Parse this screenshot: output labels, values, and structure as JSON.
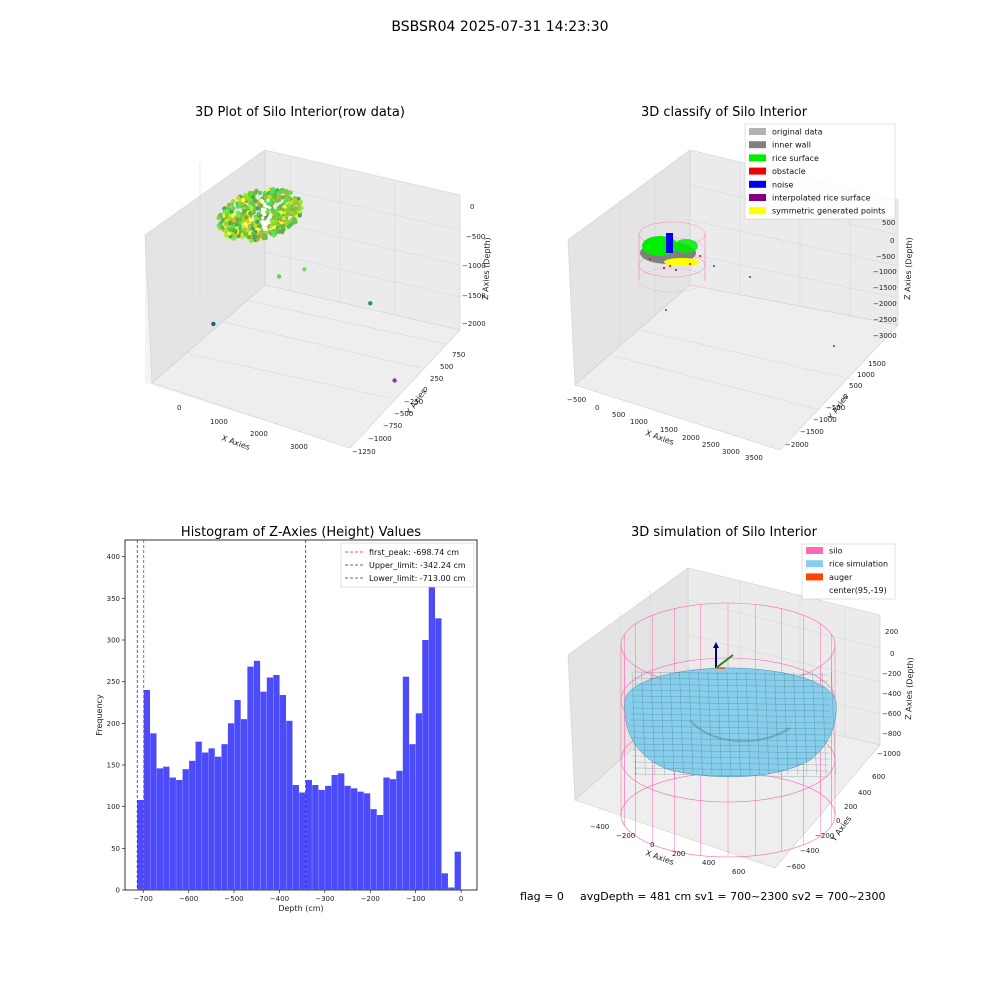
{
  "suptitle": "BSBSR04 2025-07-31 14:23:30",
  "status_line": {
    "flag": "flag = 0",
    "avg": "avgDepth = 481 cm  sv1 = 700~2300  sv2 = 700~2300"
  },
  "colors": {
    "hist_bar": "#4b4bfa",
    "first_peak": "#e8231f",
    "limits": "#2626d9",
    "silo": "#ff69b4",
    "rice": "#87ceeb",
    "auger": "#ff4500",
    "pane": "#f0f0f0"
  },
  "chart_data": [
    {
      "type": "scatter",
      "subtype": "3d",
      "title": "3D Plot of Silo Interior(row data)",
      "xlabel": "X Axies",
      "ylabel": "Y Axies",
      "zlabel": "Z Axies (Depth)",
      "x_ticks": [
        "0",
        "1000",
        "2000",
        "3000"
      ],
      "y_ticks": [
        "750",
        "500",
        "250",
        "0",
        "−250",
        "−500",
        "−750",
        "−1000",
        "−1250"
      ],
      "z_ticks": [
        "0",
        "−500",
        "−1000",
        "−1500",
        "−2000"
      ],
      "xlim": [
        -500,
        3500
      ],
      "ylim": [
        -1300,
        800
      ],
      "zlim": [
        -2300,
        0
      ],
      "points": [
        {
          "x": 800,
          "y": 300,
          "z": -100,
          "color": "#90ee40"
        },
        {
          "x": 1100,
          "y": -400,
          "z": -750,
          "color": "#5fd06a"
        },
        {
          "x": 1500,
          "y": -300,
          "z": -600,
          "color": "#7ad86a"
        },
        {
          "x": 2400,
          "y": 100,
          "z": -1300,
          "color": "#2e8b8b"
        },
        {
          "x": 3200,
          "y": -200,
          "z": -2200,
          "color": "#8b3aa0"
        },
        {
          "x": 100,
          "y": -700,
          "z": -1600,
          "color": "#1f5f7a"
        }
      ]
    },
    {
      "type": "scatter",
      "subtype": "3d",
      "title": "3D classify of Silo Interior",
      "xlabel": "X Axies",
      "ylabel": "Y Axies",
      "zlabel": "Z Axies (Depth)",
      "x_ticks": [
        "−500",
        "0",
        "500",
        "1000",
        "1500",
        "2000",
        "2500",
        "3000",
        "3500"
      ],
      "y_ticks": [
        "1500",
        "1000",
        "500",
        "0",
        "−500",
        "−1000",
        "−1500",
        "−2000"
      ],
      "z_ticks": [
        "500",
        "0",
        "−500",
        "−1000",
        "−1500",
        "−2000",
        "−2500",
        "−3000"
      ],
      "legend": [
        {
          "label": "original data",
          "color": "#b3b3b3"
        },
        {
          "label": "inner wall",
          "color": "#808080"
        },
        {
          "label": "rice surface",
          "color": "#00ee00"
        },
        {
          "label": "obstacle",
          "color": "#ee0000"
        },
        {
          "label": "noise",
          "color": "#0000ee"
        },
        {
          "label": "interpolated rice surface",
          "color": "#800080"
        },
        {
          "label": "symmetric generated points",
          "color": "#ffff00"
        }
      ]
    },
    {
      "type": "bar",
      "subtype": "histogram",
      "title": "Histogram of Z-Axies (Height) Values",
      "xlabel": "Depth (cm)",
      "ylabel": "Frequency",
      "xlim": [
        -740,
        35
      ],
      "ylim": [
        0,
        420
      ],
      "x_ticks": [
        -700,
        -600,
        -500,
        -400,
        -300,
        -200,
        -100,
        0
      ],
      "x_tick_labels": [
        "−700",
        "−600",
        "−500",
        "−400",
        "−300",
        "−200",
        "−100",
        "0"
      ],
      "y_ticks": [
        0,
        50,
        100,
        150,
        200,
        250,
        300,
        350,
        400
      ],
      "bin_start": -713,
      "bin_width": 14.26,
      "values": [
        108,
        240,
        188,
        146,
        148,
        135,
        132,
        145,
        155,
        178,
        165,
        170,
        160,
        175,
        200,
        228,
        205,
        268,
        275,
        238,
        255,
        258,
        234,
        203,
        126,
        117,
        132,
        126,
        120,
        125,
        138,
        140,
        125,
        122,
        118,
        116,
        97,
        90,
        135,
        133,
        143,
        256,
        175,
        212,
        300,
        370,
        326,
        20,
        3,
        46
      ],
      "lines": [
        {
          "label": "first_peak: -698.74 cm",
          "x": -698.74,
          "color": "#e8231f"
        },
        {
          "label": "Upper_limit: -342.24 cm",
          "x": -342.24,
          "color": "#2626d9"
        },
        {
          "label": "Lower_limit: -713.00 cm",
          "x": -713.0,
          "color": "#2626d9"
        }
      ]
    },
    {
      "type": "area",
      "subtype": "3d-surface",
      "title": "3D simulation of Silo Interior",
      "xlabel": "X Axies",
      "ylabel": "Y Axies",
      "zlabel": "Z Axies (Depth)",
      "x_ticks": [
        "−400",
        "−200",
        "0",
        "200",
        "400",
        "600"
      ],
      "y_ticks": [
        "600",
        "400",
        "200",
        "0",
        "−200",
        "−400",
        "−600"
      ],
      "z_ticks": [
        "200",
        "0",
        "−200",
        "−400",
        "−600",
        "−800",
        "−1000"
      ],
      "legend": [
        {
          "label": "silo",
          "color": "#ff69b4"
        },
        {
          "label": "rice simulation",
          "color": "#87ceeb"
        },
        {
          "label": "auger",
          "color": "#ff4500"
        },
        {
          "label": "center(95,-19)",
          "color": ""
        }
      ]
    }
  ]
}
